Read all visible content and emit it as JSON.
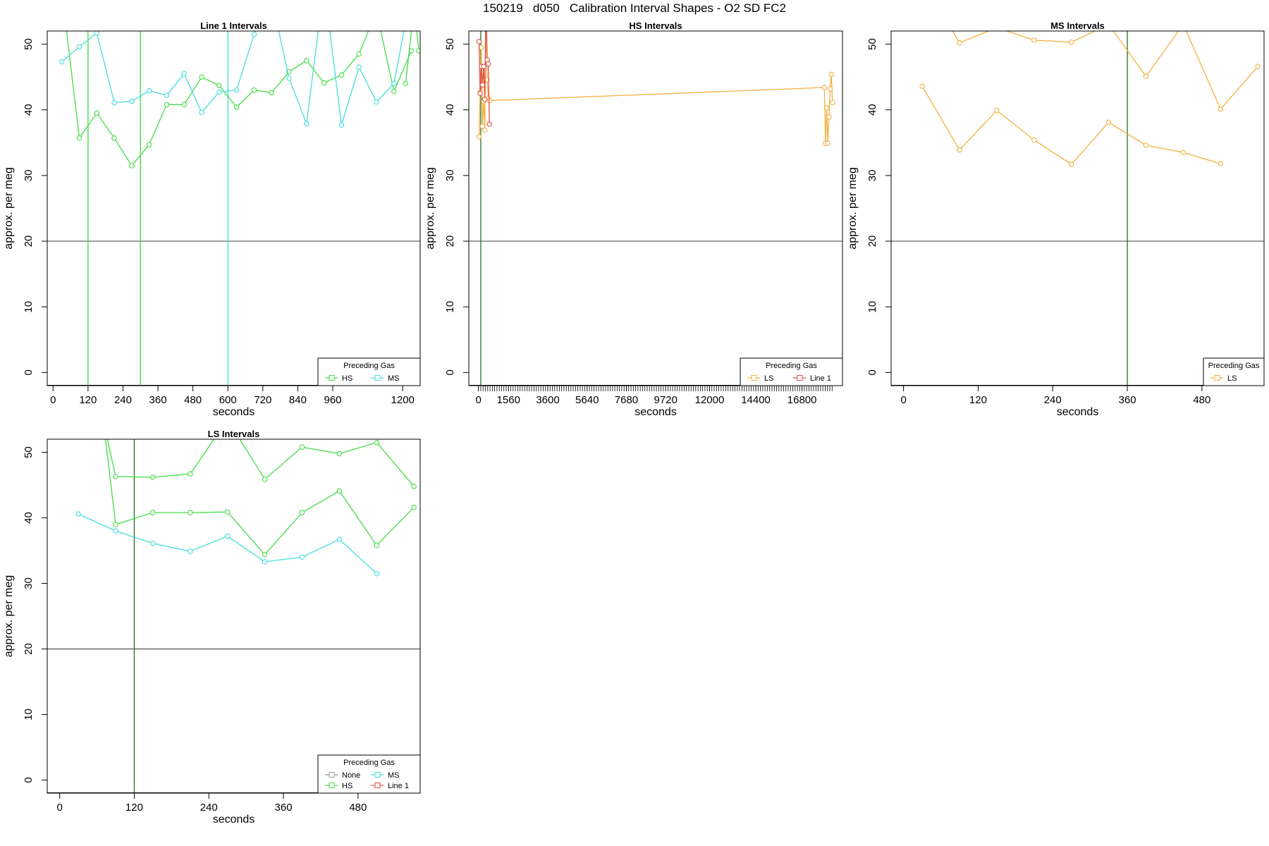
{
  "page": {
    "title": "150219   d050   Calibration Interval Shapes - O2 SD FC2"
  },
  "colors": {
    "HS": "#44dd44",
    "MS": "#44dddd",
    "LS": "#f4b040",
    "Line 1": "#e05040",
    "None": "#999999",
    "vline": "#2e7d2e",
    "hline": "#555555"
  },
  "chart_data": [
    {
      "type": "line",
      "title": "Line 1 Intervals",
      "xlabel": "seconds",
      "ylabel": "approx. per meg",
      "xlim": [
        -20,
        1260
      ],
      "ylim": [
        -2,
        52
      ],
      "xticks": [
        0,
        120,
        240,
        360,
        480,
        600,
        720,
        840,
        960,
        1200
      ],
      "yticks": [
        0,
        10,
        20,
        30,
        40,
        50
      ],
      "hline": 20,
      "vlines": [
        {
          "x": 120,
          "color": "HS"
        },
        {
          "x": 300,
          "color": "HS"
        },
        {
          "x": 600,
          "color": "MS"
        }
      ],
      "legend": {
        "title": "Preceding Gas",
        "entries": [
          "HS",
          "MS"
        ],
        "ncol": 2,
        "position": "bottom-right"
      },
      "series": [
        {
          "name": "HS",
          "color": "HS",
          "x": [
            30,
            90,
            150,
            210,
            270,
            330,
            390,
            450,
            510,
            570,
            630,
            690,
            750,
            810,
            870,
            930,
            990,
            1050,
            1110,
            1170,
            1230
          ],
          "y": [
            58,
            35.7,
            39.5,
            35.7,
            31.5,
            34.7,
            40.8,
            40.8,
            45,
            43.7,
            40.4,
            43,
            42.6,
            45.8,
            47.5,
            44.1,
            45.3,
            48.5,
            55,
            42.8,
            49
          ]
        },
        {
          "name": "",
          "color": "HS",
          "x": [
            1210,
            1240,
            1255
          ],
          "y": [
            44,
            56,
            49
          ]
        },
        {
          "name": "MS",
          "color": "MS",
          "x": [
            30,
            90,
            150,
            210,
            270,
            330,
            390,
            450,
            510,
            570,
            630,
            690,
            750,
            810,
            870,
            930,
            990,
            1050,
            1110,
            1170,
            1230
          ],
          "y": [
            47.3,
            49.6,
            51.7,
            41.1,
            41.3,
            42.9,
            42.2,
            45.5,
            39.6,
            42.7,
            43,
            51.5,
            57,
            44.8,
            37.9,
            59,
            37.7,
            46.5,
            41.2,
            44,
            58
          ]
        }
      ]
    },
    {
      "type": "line",
      "title": "HS Intervals",
      "xlabel": "seconds",
      "ylabel": "approx. per meg",
      "xlim": [
        -500,
        18900
      ],
      "ylim": [
        -2,
        52
      ],
      "xticks": [
        0,
        1560,
        3600,
        5640,
        7680,
        9720,
        12000,
        14400,
        16800
      ],
      "minor_xtick_step": 120,
      "yticks": [
        0,
        10,
        20,
        30,
        40,
        50
      ],
      "hline": 20,
      "vlines": [
        {
          "x": 120,
          "color": "vline"
        }
      ],
      "legend": {
        "title": "Preceding Gas",
        "entries": [
          "LS",
          "Line 1"
        ],
        "ncol": 2,
        "position": "bottom-right"
      },
      "series": [
        {
          "name": "LS",
          "color": "LS",
          "x": [
            30,
            90,
            150,
            210,
            270,
            330,
            390,
            450,
            510,
            570,
            17960,
            18020,
            18080,
            18140,
            18200,
            18260,
            18320,
            18380
          ],
          "y": [
            35.9,
            42.7,
            49.5,
            37.5,
            41.3,
            36.9,
            55,
            44.6,
            41.7,
            41.4,
            43.4,
            34.9,
            40.3,
            34.9,
            38.9,
            43.2,
            45.4,
            41.1
          ]
        },
        {
          "name": "Line 1",
          "color": "Line 1",
          "x": [
            30,
            90,
            150,
            210,
            270,
            330,
            390,
            450,
            510,
            570
          ],
          "y": [
            50.4,
            42.5,
            46.6,
            43.8,
            46.6,
            41.6,
            58,
            47.6,
            47,
            37.8
          ]
        }
      ]
    },
    {
      "type": "line",
      "title": "MS Intervals",
      "xlabel": "seconds",
      "ylabel": "approx. per meg",
      "xlim": [
        -20,
        580
      ],
      "ylim": [
        -2,
        52
      ],
      "xticks": [
        0,
        120,
        240,
        360,
        480
      ],
      "yticks": [
        0,
        10,
        20,
        30,
        40,
        50
      ],
      "hline": 20,
      "vlines": [
        {
          "x": 360,
          "color": "vline"
        }
      ],
      "legend": {
        "title": "Preceding Gas",
        "entries": [
          "LS"
        ],
        "ncol": 1,
        "position": "bottom-right"
      },
      "series": [
        {
          "name": "LS",
          "color": "LS",
          "x": [
            30,
            90,
            150,
            210,
            270,
            330,
            390,
            450,
            510,
            570
          ],
          "y": [
            43.6,
            33.9,
            39.9,
            35.4,
            31.7,
            38.1,
            34.6,
            33.5,
            31.8,
            null
          ]
        },
        {
          "name": "",
          "color": "LS",
          "x": [
            30,
            90,
            150,
            210,
            270,
            330,
            390,
            450,
            510,
            570
          ],
          "y": [
            60,
            50.2,
            52.5,
            50.6,
            50.3,
            53,
            45.1,
            53,
            40.1,
            46.6
          ]
        }
      ]
    },
    {
      "type": "line",
      "title": "LS Intervals",
      "xlabel": "seconds",
      "ylabel": "approx. per meg",
      "xlim": [
        -20,
        580
      ],
      "ylim": [
        -2,
        52
      ],
      "xticks": [
        0,
        120,
        240,
        360,
        480
      ],
      "yticks": [
        0,
        10,
        20,
        30,
        40,
        50
      ],
      "hline": 20,
      "vlines": [
        {
          "x": 120,
          "color": "vline"
        }
      ],
      "legend": {
        "title": "Preceding Gas",
        "entries": [
          "None",
          "MS",
          "HS",
          "Line 1"
        ],
        "ncol": 2,
        "position": "bottom-right"
      },
      "series": [
        {
          "name": "HS",
          "color": "HS",
          "x": [
            70,
            90,
            150,
            210,
            270,
            330,
            390,
            450,
            510,
            570
          ],
          "y": [
            55,
            39,
            40.8,
            40.8,
            40.9,
            34.4,
            40.8,
            44.1,
            35.8,
            41.6
          ]
        },
        {
          "name": "",
          "color": "HS",
          "x": [
            70,
            90,
            150,
            210,
            270,
            330,
            390,
            450,
            510,
            570
          ],
          "y": [
            55,
            46.3,
            46.2,
            46.7,
            55,
            45.9,
            50.8,
            49.8,
            51.5,
            44.8
          ]
        },
        {
          "name": "MS",
          "color": "MS",
          "x": [
            30,
            90,
            150,
            210,
            270,
            330,
            390,
            450,
            510
          ],
          "y": [
            40.6,
            38,
            36.1,
            34.9,
            37.2,
            33.3,
            34,
            36.7,
            31.5
          ]
        }
      ]
    }
  ]
}
